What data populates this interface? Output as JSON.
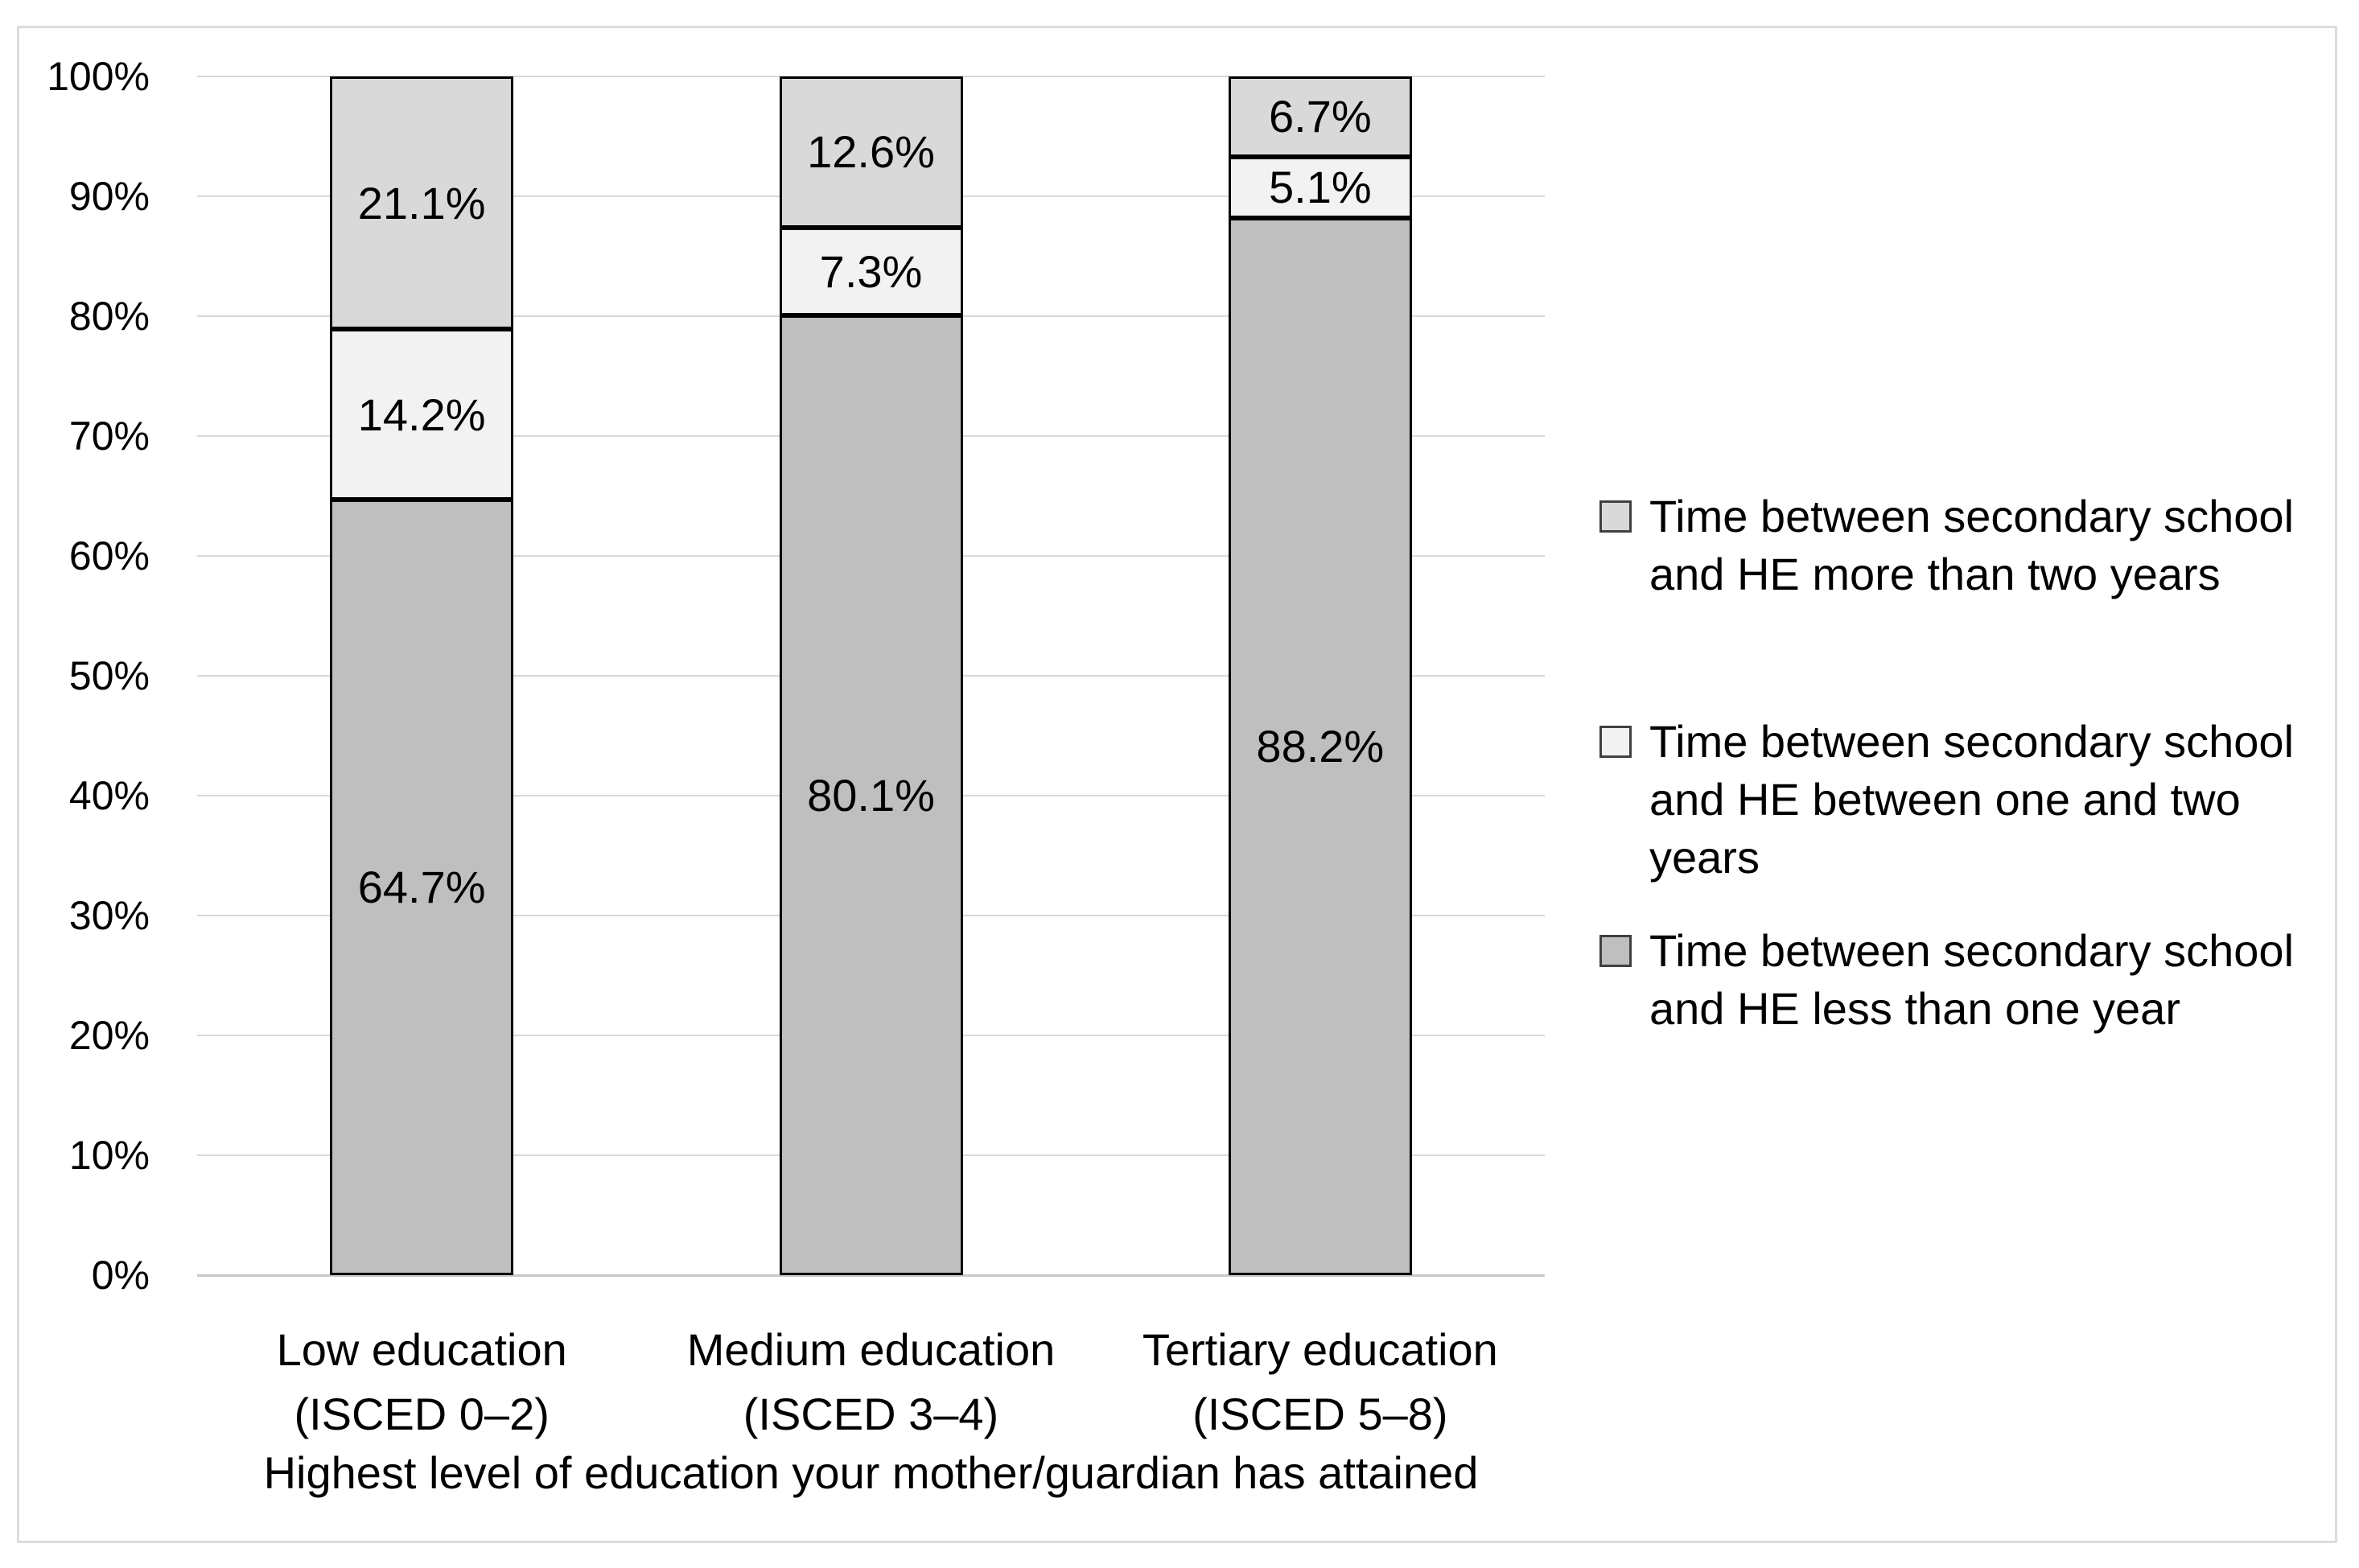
{
  "figure": {
    "background": "#ffffff",
    "frame_color": "#dcdcdc"
  },
  "chart_data": {
    "type": "bar",
    "subtype": "stacked-100-percent",
    "orientation": "vertical",
    "title": "",
    "xlabel": "Highest level of education your mother/guardian has attained",
    "ylabel": "",
    "ylim": [
      0,
      100
    ],
    "y_tick_step": 10,
    "y_tick_labels": [
      "0%",
      "10%",
      "20%",
      "30%",
      "40%",
      "50%",
      "60%",
      "70%",
      "80%",
      "90%",
      "100%"
    ],
    "grid": "horizontal",
    "legend_position": "right",
    "categories": [
      {
        "lines": [
          "Low education",
          "(ISCED 0–2)"
        ]
      },
      {
        "lines": [
          "Medium education",
          "(ISCED 3–4)"
        ]
      },
      {
        "lines": [
          "Tertiary education",
          "(ISCED 5–8)"
        ]
      }
    ],
    "series": [
      {
        "name": "Time between secondary school and HE less than one year",
        "color": "#bfbfbf",
        "values": [
          64.7,
          80.1,
          88.2
        ],
        "data_labels": [
          "64.7%",
          "80.1%",
          "88.2%"
        ]
      },
      {
        "name": "Time between secondary school and HE between one and two years",
        "color": "#f2f2f2",
        "values": [
          14.2,
          7.3,
          5.1
        ],
        "data_labels": [
          "14.2%",
          "7.3%",
          "5.1%"
        ]
      },
      {
        "name": "Time between secondary school and HE more than two years",
        "color": "#d9d9d9",
        "values": [
          21.1,
          12.6,
          6.7
        ],
        "data_labels": [
          "21.1%",
          "12.6%",
          "6.7%"
        ]
      }
    ],
    "legend_series_order": [
      2,
      1,
      0
    ],
    "colors": {
      "bar_border": "#000000",
      "gridline": "#d9d9d9",
      "axis_line": "#c9c9c9",
      "text": "#000000",
      "legend_swatch_border": "#404040"
    }
  }
}
